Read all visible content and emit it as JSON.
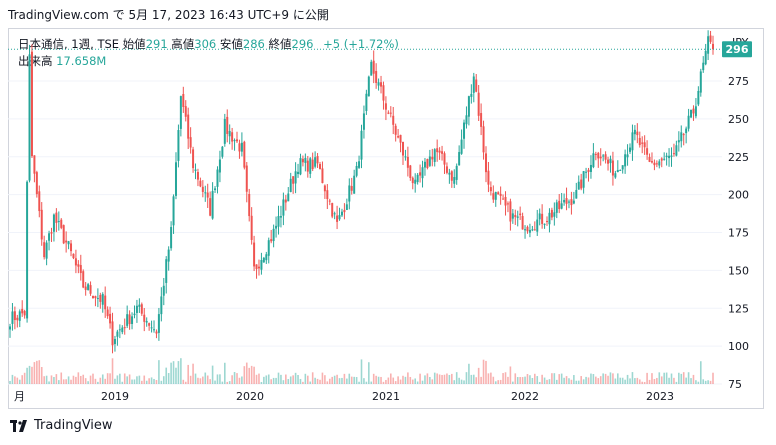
{
  "header": {
    "source": "TradingView.com で 5月 17, 2023 16:43 UTC+9 に公開"
  },
  "legend": {
    "symbol": "日本通信, 1週, TSE",
    "open_label": "始値",
    "open": "291",
    "high_label": "高値",
    "high": "306",
    "low_label": "安値",
    "low": "286",
    "close_label": "終値",
    "close": "296",
    "change": "+5 (+1.72%)",
    "volume_label": "出来高",
    "volume": "17.658M"
  },
  "currency": "JPY",
  "price_badge": "296",
  "footer": {
    "brand": "TradingView"
  },
  "colors": {
    "up": "#26a69a",
    "down": "#ef5350",
    "badge": "#26a69a",
    "grid": "#f0f3fa"
  },
  "chart_data": {
    "type": "candlestick",
    "yaxis": {
      "min": 75,
      "max": 310,
      "ticks": [
        75,
        100,
        125,
        150,
        175,
        200,
        225,
        250,
        275
      ]
    },
    "xaxis_labels": [
      "月",
      "2019",
      "2020",
      "2021",
      "2022",
      "2023"
    ],
    "last_close": 296,
    "waypoints": [
      {
        "t": 0,
        "p": 118
      },
      {
        "t": 6,
        "p": 122
      },
      {
        "t": 8,
        "p": 290
      },
      {
        "t": 9,
        "p": 225
      },
      {
        "t": 14,
        "p": 160
      },
      {
        "t": 18,
        "p": 185
      },
      {
        "t": 24,
        "p": 165
      },
      {
        "t": 30,
        "p": 140
      },
      {
        "t": 38,
        "p": 130
      },
      {
        "t": 42,
        "p": 105
      },
      {
        "t": 52,
        "p": 125
      },
      {
        "t": 60,
        "p": 110
      },
      {
        "t": 66,
        "p": 175
      },
      {
        "t": 70,
        "p": 265
      },
      {
        "t": 75,
        "p": 220
      },
      {
        "t": 82,
        "p": 190
      },
      {
        "t": 88,
        "p": 245
      },
      {
        "t": 95,
        "p": 230
      },
      {
        "t": 100,
        "p": 150
      },
      {
        "t": 108,
        "p": 175
      },
      {
        "t": 118,
        "p": 220
      },
      {
        "t": 126,
        "p": 220
      },
      {
        "t": 134,
        "p": 180
      },
      {
        "t": 142,
        "p": 215
      },
      {
        "t": 148,
        "p": 285
      },
      {
        "t": 156,
        "p": 250
      },
      {
        "t": 166,
        "p": 205
      },
      {
        "t": 174,
        "p": 230
      },
      {
        "t": 182,
        "p": 210
      },
      {
        "t": 190,
        "p": 280
      },
      {
        "t": 196,
        "p": 205
      },
      {
        "t": 206,
        "p": 185
      },
      {
        "t": 212,
        "p": 180
      },
      {
        "t": 220,
        "p": 185
      },
      {
        "t": 232,
        "p": 200
      },
      {
        "t": 240,
        "p": 230
      },
      {
        "t": 248,
        "p": 215
      },
      {
        "t": 256,
        "p": 240
      },
      {
        "t": 262,
        "p": 220
      },
      {
        "t": 272,
        "p": 225
      },
      {
        "t": 280,
        "p": 255
      },
      {
        "t": 286,
        "p": 300
      },
      {
        "t": 288,
        "p": 296
      }
    ]
  }
}
